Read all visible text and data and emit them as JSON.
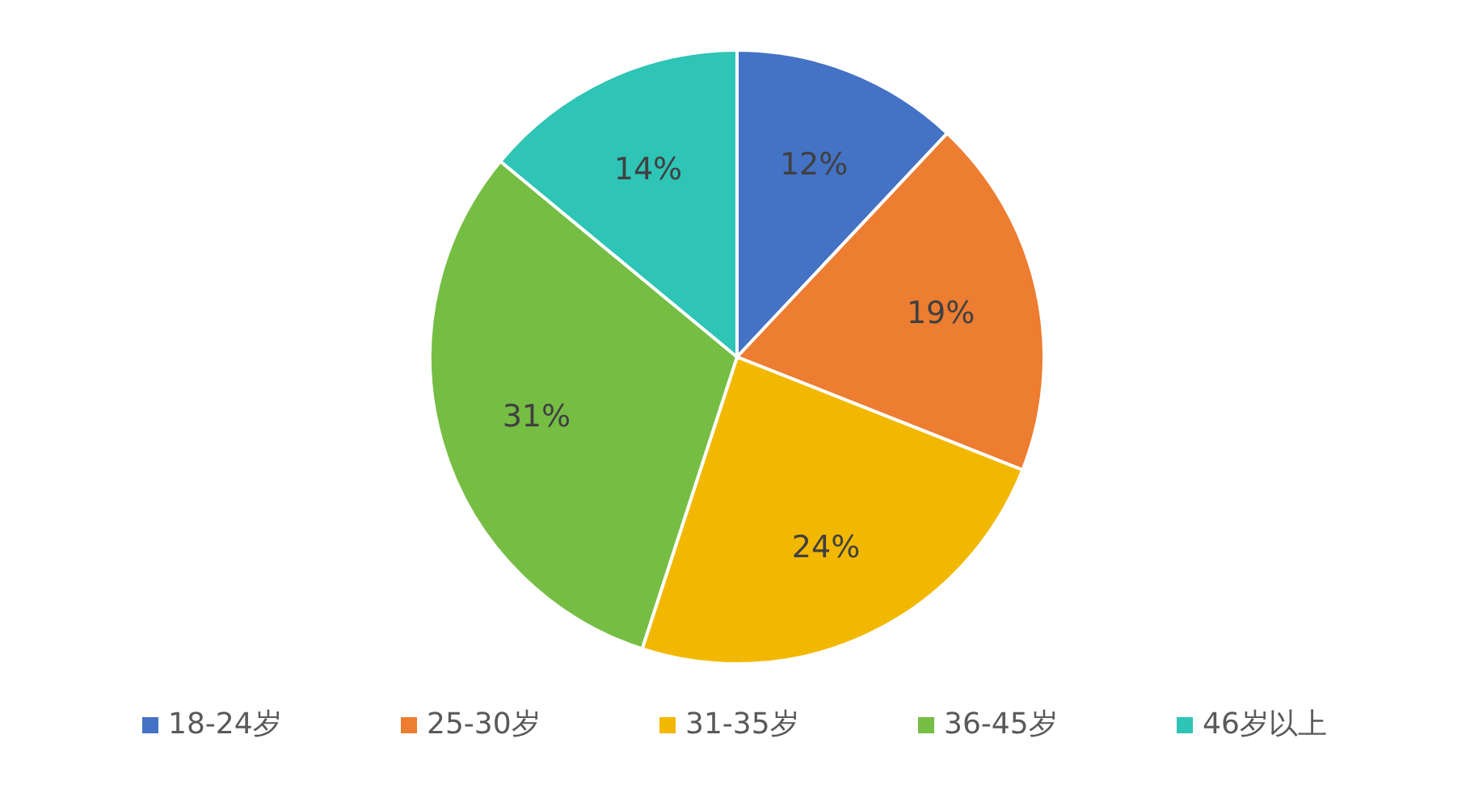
{
  "chart_data": {
    "type": "pie",
    "categories": [
      "18-24岁",
      "25-30岁",
      "31-35岁",
      "36-45岁",
      "46岁以上"
    ],
    "values": [
      12,
      19,
      24,
      31,
      14
    ],
    "colors": [
      "#4472c4",
      "#ed7d31",
      "#f2b800",
      "#76bd44",
      "#2ec4b6"
    ],
    "value_labels": [
      "12%",
      "19%",
      "24%",
      "31%",
      "14%"
    ],
    "legend": "bottom"
  }
}
